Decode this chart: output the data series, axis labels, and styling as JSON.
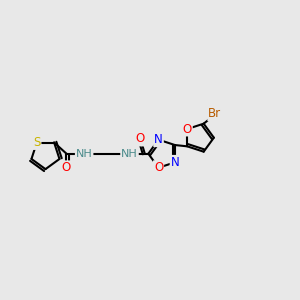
{
  "bg_color": "#e8e8e8",
  "bond_color": "#000000",
  "bond_width": 1.5,
  "atom_colors": {
    "S": "#c8b400",
    "O": "#ff0000",
    "N": "#0000ff",
    "Br": "#b85c00",
    "C": "#000000",
    "H": "#4a8a8a"
  },
  "font_size": 8.5
}
